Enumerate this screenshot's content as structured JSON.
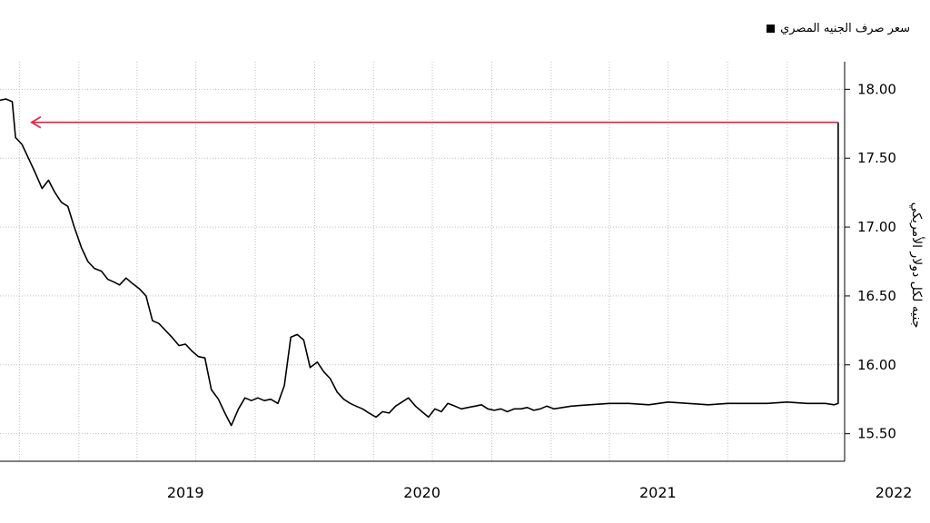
{
  "legend": {
    "label": "سعر صرف الجنيه المصري"
  },
  "colors": {
    "line": "#000000",
    "arrow": "#e8274b",
    "grid": "#bfbfbf",
    "axis": "#000000"
  },
  "chart_data": {
    "type": "line",
    "title": "",
    "xlabel": "",
    "ylabel": "جنيه لكل دولار الأمريكي",
    "ylim": [
      15.3,
      18.2
    ],
    "xlim": [
      "2018-09-01",
      "2022-03-31"
    ],
    "y_ticks": [
      "15.50",
      "16.00",
      "16.50",
      "17.00",
      "17.50",
      "18.00"
    ],
    "x_ticks": [
      {
        "date": "2019-01-01",
        "label": "2019"
      },
      {
        "date": "2020-01-01",
        "label": "2020"
      },
      {
        "date": "2021-01-01",
        "label": "2021"
      },
      {
        "date": "2022-01-01",
        "label": "2022"
      }
    ],
    "grid": true,
    "legend_position": "top-right",
    "series": [
      {
        "name": "سعر صرف الجنيه المصري",
        "x": [
          "2018-09-01",
          "2018-09-10",
          "2018-09-15",
          "2018-09-20",
          "2018-09-25",
          "2018-10-05",
          "2018-10-15",
          "2018-10-25",
          "2018-11-05",
          "2018-11-15",
          "2018-11-25",
          "2018-12-05",
          "2018-12-15",
          "2018-12-25",
          "2019-01-05",
          "2019-01-15",
          "2019-01-25",
          "2019-02-05",
          "2019-02-15",
          "2019-02-25",
          "2019-03-05",
          "2019-03-15",
          "2019-03-25",
          "2019-04-05",
          "2019-04-15",
          "2019-04-25",
          "2019-05-05",
          "2019-05-15",
          "2019-05-25",
          "2019-06-05",
          "2019-06-15",
          "2019-06-25",
          "2019-07-05",
          "2019-07-15",
          "2019-07-25",
          "2019-08-05",
          "2019-08-15",
          "2019-08-25",
          "2019-09-05",
          "2019-09-15",
          "2019-09-25",
          "2019-10-05",
          "2019-10-15",
          "2019-10-25",
          "2019-11-05",
          "2019-11-15",
          "2019-11-25",
          "2019-12-05",
          "2019-12-15",
          "2019-12-25",
          "2020-01-05",
          "2020-01-15",
          "2020-01-25",
          "2020-02-05",
          "2020-02-15",
          "2020-02-25",
          "2020-03-05",
          "2020-03-15",
          "2020-03-25",
          "2020-04-05",
          "2020-04-15",
          "2020-04-25",
          "2020-05-05",
          "2020-05-15",
          "2020-05-25",
          "2020-06-05",
          "2020-06-15",
          "2020-06-25",
          "2020-07-05",
          "2020-07-15",
          "2020-07-25",
          "2020-08-05",
          "2020-08-15",
          "2020-08-25",
          "2020-09-05",
          "2020-09-15",
          "2020-09-25",
          "2020-10-05",
          "2020-10-15",
          "2020-10-25",
          "2020-11-05",
          "2020-11-15",
          "2020-11-25",
          "2020-12-05",
          "2020-12-15",
          "2020-12-25",
          "2021-01-05",
          "2021-02-01",
          "2021-03-01",
          "2021-04-01",
          "2021-05-01",
          "2021-06-01",
          "2021-07-01",
          "2021-08-01",
          "2021-09-01",
          "2021-10-01",
          "2021-11-01",
          "2021-12-01",
          "2022-01-01",
          "2022-02-01",
          "2022-03-01",
          "2022-03-15",
          "2022-03-21",
          "2022-03-21"
        ],
        "values": [
          17.92,
          17.93,
          17.92,
          17.91,
          17.65,
          17.6,
          17.5,
          17.4,
          17.28,
          17.34,
          17.25,
          17.18,
          17.15,
          17.0,
          16.85,
          16.75,
          16.7,
          16.68,
          16.62,
          16.6,
          16.58,
          16.63,
          16.59,
          16.55,
          16.5,
          16.32,
          16.3,
          16.25,
          16.2,
          16.14,
          16.15,
          16.1,
          16.06,
          16.05,
          15.82,
          15.75,
          15.65,
          15.56,
          15.68,
          15.76,
          15.74,
          15.76,
          15.74,
          15.75,
          15.72,
          15.85,
          16.2,
          16.22,
          16.18,
          15.98,
          16.02,
          15.95,
          15.9,
          15.8,
          15.75,
          15.72,
          15.7,
          15.68,
          15.65,
          15.62,
          15.66,
          15.65,
          15.7,
          15.73,
          15.76,
          15.7,
          15.66,
          15.62,
          15.68,
          15.66,
          15.72,
          15.7,
          15.68,
          15.69,
          15.7,
          15.71,
          15.68,
          15.67,
          15.68,
          15.66,
          15.68,
          15.68,
          15.69,
          15.67,
          15.68,
          15.7,
          15.68,
          15.7,
          15.71,
          15.72,
          15.72,
          15.71,
          15.73,
          15.72,
          15.71,
          15.72,
          15.72,
          15.72,
          15.73,
          15.72,
          15.72,
          15.71,
          15.72,
          17.76
        ]
      }
    ],
    "annotations": [
      {
        "type": "arrow",
        "from": {
          "x": "2022-03-21",
          "y": 17.76
        },
        "to": {
          "x": "2018-10-20",
          "y": 17.76
        }
      }
    ]
  }
}
